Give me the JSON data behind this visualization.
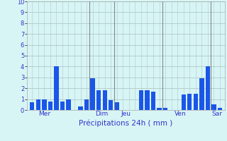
{
  "title": "",
  "xlabel": "Précipitations 24h ( mm )",
  "ylabel": "",
  "ylim": [
    0,
    10
  ],
  "background_color": "#d8f5f5",
  "bar_color": "#1a56e8",
  "grid_color": "#b0c8c8",
  "axis_label_color": "#3333cc",
  "tick_label_color": "#3333cc",
  "bar_values": [
    0.7,
    1.0,
    1.0,
    0.8,
    4.0,
    0.8,
    1.0,
    0.0,
    0.3,
    1.0,
    2.9,
    1.8,
    1.8,
    0.9,
    0.7,
    0.0,
    0.0,
    0.0,
    1.8,
    1.8,
    1.7,
    0.2,
    0.2,
    0.0,
    0.0,
    1.4,
    1.5,
    1.5,
    2.9,
    4.0,
    0.5,
    0.2
  ],
  "day_labels": [
    "Mer",
    "Dim",
    "Jeu",
    "Ven",
    "Sar"
  ],
  "day_positions": [
    2.0,
    11.5,
    15.5,
    24.5,
    30.5
  ],
  "day_vlines": [
    9.5,
    13.5,
    21.5,
    29.5
  ],
  "yticks": [
    0,
    1,
    2,
    3,
    4,
    5,
    6,
    7,
    8,
    9,
    10
  ]
}
